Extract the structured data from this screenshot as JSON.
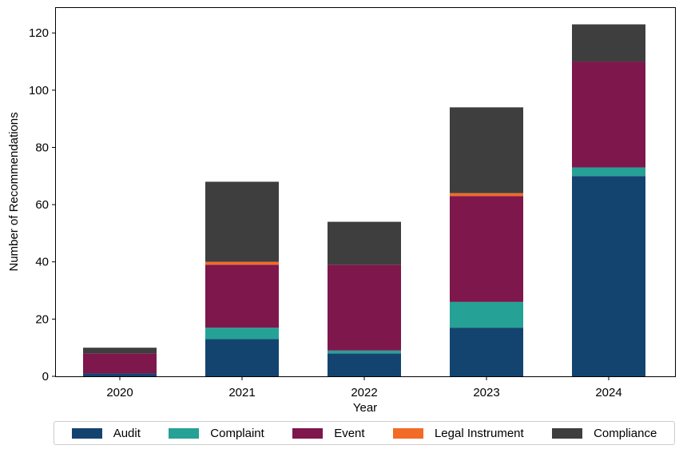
{
  "chart_data": {
    "type": "bar",
    "stacked": true,
    "categories": [
      "2020",
      "2021",
      "2022",
      "2023",
      "2024"
    ],
    "series": [
      {
        "name": "Audit",
        "color": "#134470",
        "values": [
          1,
          13,
          8,
          17,
          70
        ]
      },
      {
        "name": "Complaint",
        "color": "#26a196",
        "values": [
          0,
          4,
          1,
          9,
          3
        ]
      },
      {
        "name": "Event",
        "color": "#7e174c",
        "values": [
          7,
          22,
          30,
          37,
          37
        ]
      },
      {
        "name": "Legal Instrument",
        "color": "#f26b27",
        "values": [
          0,
          1,
          0,
          1,
          0
        ]
      },
      {
        "name": "Compliance",
        "color": "#3e3e3e",
        "values": [
          2,
          28,
          15,
          30,
          13
        ]
      }
    ],
    "xlabel": "Year",
    "ylabel": "Number of Recommendations",
    "ylim": [
      0,
      129
    ],
    "yticks": [
      "0",
      "20",
      "40",
      "60",
      "80",
      "100",
      "120"
    ],
    "grid": false,
    "legend_position": "bottom"
  }
}
